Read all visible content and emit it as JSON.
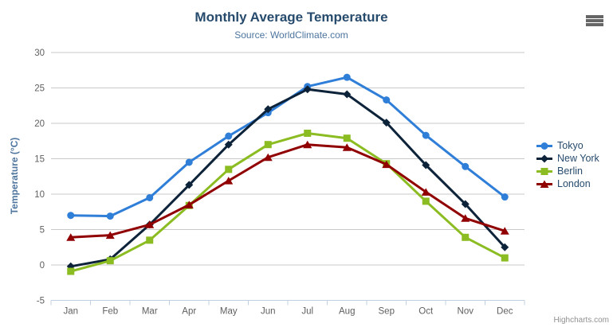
{
  "header": {
    "title": "Monthly Average Temperature",
    "subtitle": "Source: WorldClimate.com"
  },
  "credit": "Highcharts.com",
  "colors": {
    "title": "#274b6d",
    "subtitle": "#4d759e",
    "axis_title": "#4d759e",
    "axis_label": "#606060",
    "grid_line": "#c9c9c9",
    "axis_line": "#c0d0e0",
    "legend_text": "#274b6d",
    "credit_text": "#909090",
    "menu_icon": "#666666"
  },
  "chart_data": {
    "type": "line",
    "title": "Monthly Average Temperature",
    "subtitle": "Source: WorldClimate.com",
    "xlabel": "",
    "ylabel": "Temperature (°C)",
    "ylim": [
      -5,
      30
    ],
    "ytick_interval": 5,
    "grid": true,
    "legend_position": "right",
    "categories": [
      "Jan",
      "Feb",
      "Mar",
      "Apr",
      "May",
      "Jun",
      "Jul",
      "Aug",
      "Sep",
      "Oct",
      "Nov",
      "Dec"
    ],
    "series": [
      {
        "name": "Tokyo",
        "color": "#2f7ed8",
        "marker": "circle",
        "values": [
          7.0,
          6.9,
          9.5,
          14.5,
          18.2,
          21.5,
          25.2,
          26.5,
          23.3,
          18.3,
          13.9,
          9.6
        ]
      },
      {
        "name": "New York",
        "color": "#0d233a",
        "marker": "diamond",
        "values": [
          -0.2,
          0.8,
          5.7,
          11.3,
          17.0,
          22.0,
          24.8,
          24.1,
          20.1,
          14.1,
          8.6,
          2.5
        ]
      },
      {
        "name": "Berlin",
        "color": "#8bbc21",
        "marker": "square",
        "values": [
          -0.9,
          0.6,
          3.5,
          8.4,
          13.5,
          17.0,
          18.6,
          17.9,
          14.3,
          9.0,
          3.9,
          1.0
        ]
      },
      {
        "name": "London",
        "color": "#910000",
        "marker": "triangle",
        "values": [
          3.9,
          4.2,
          5.7,
          8.5,
          11.9,
          15.2,
          17.0,
          16.6,
          14.2,
          10.3,
          6.6,
          4.8
        ]
      }
    ]
  }
}
